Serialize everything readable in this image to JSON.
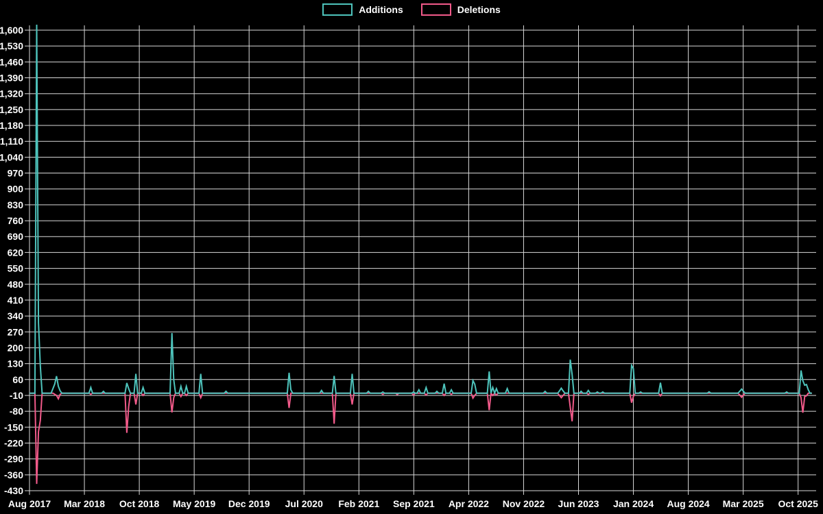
{
  "chart_data": {
    "type": "line",
    "title": "",
    "background": "#000000",
    "grid": true,
    "legend_position": "top-center",
    "x_axis": {
      "unit": "week",
      "tick_labels": [
        "Aug 2017",
        "Mar 2018",
        "Oct 2018",
        "May 2019",
        "Dec 2019",
        "Jul 2020",
        "Feb 2021",
        "Sep 2021",
        "Apr 2022",
        "Nov 2022",
        "Jun 2023",
        "Jan 2024",
        "Aug 2024",
        "Mar 2025",
        "Oct 2025"
      ]
    },
    "y_axis": {
      "min": -430,
      "max": 1600,
      "step": 70,
      "tick_labels": [
        "1,600",
        "1,530",
        "1,460",
        "1,390",
        "1,320",
        "1,250",
        "1,180",
        "1,110",
        "1,040",
        "970",
        "900",
        "830",
        "760",
        "690",
        "620",
        "550",
        "480",
        "410",
        "340",
        "270",
        "200",
        "130",
        "60",
        "-10",
        "-80",
        "-150",
        "-220",
        "-290",
        "-360",
        "-430"
      ]
    },
    "series": [
      {
        "name": "Additions",
        "color": "#4ec4bc"
      },
      {
        "name": "Deletions",
        "color": "#f25a8a"
      }
    ],
    "weeks_total": 435,
    "baseline_value": 0,
    "spikes_comment": "sparse weekly points [week_index, additions, deletions]; all other weeks are 0",
    "spikes": [
      [
        4,
        1630,
        -400
      ],
      [
        5,
        310,
        -170
      ],
      [
        6,
        120,
        -120
      ],
      [
        13,
        20,
        0
      ],
      [
        14,
        40,
        -5
      ],
      [
        15,
        75,
        -10
      ],
      [
        16,
        30,
        -25
      ],
      [
        17,
        10,
        -5
      ],
      [
        34,
        25,
        -5
      ],
      [
        41,
        8,
        0
      ],
      [
        54,
        45,
        -175
      ],
      [
        55,
        20,
        -60
      ],
      [
        59,
        85,
        -50
      ],
      [
        63,
        25,
        -10
      ],
      [
        79,
        265,
        -85
      ],
      [
        80,
        60,
        -20
      ],
      [
        84,
        30,
        -15
      ],
      [
        87,
        30,
        -10
      ],
      [
        95,
        85,
        -20
      ],
      [
        109,
        8,
        0
      ],
      [
        144,
        90,
        -65
      ],
      [
        145,
        15,
        0
      ],
      [
        162,
        12,
        0
      ],
      [
        169,
        76,
        -135
      ],
      [
        179,
        85,
        -50
      ],
      [
        188,
        8,
        0
      ],
      [
        196,
        5,
        -5
      ],
      [
        204,
        0,
        -6
      ],
      [
        213,
        5,
        -8
      ],
      [
        216,
        15,
        0
      ],
      [
        220,
        25,
        -8
      ],
      [
        226,
        8,
        0
      ],
      [
        230,
        42,
        -10
      ],
      [
        234,
        15,
        -5
      ],
      [
        246,
        55,
        -22
      ],
      [
        247,
        40,
        -10
      ],
      [
        255,
        96,
        -75
      ],
      [
        257,
        25,
        -10
      ],
      [
        259,
        20,
        -8
      ],
      [
        265,
        20,
        0
      ],
      [
        286,
        8,
        0
      ],
      [
        294,
        10,
        -10
      ],
      [
        295,
        22,
        -20
      ],
      [
        296,
        10,
        -10
      ],
      [
        300,
        148,
        -63
      ],
      [
        301,
        82,
        -124
      ],
      [
        306,
        8,
        0
      ],
      [
        310,
        12,
        -5
      ],
      [
        315,
        5,
        0
      ],
      [
        318,
        5,
        0
      ],
      [
        334,
        122,
        -42
      ],
      [
        335,
        108,
        -15
      ],
      [
        339,
        5,
        0
      ],
      [
        350,
        46,
        -12
      ],
      [
        377,
        6,
        0
      ],
      [
        394,
        8,
        -8
      ],
      [
        395,
        18,
        -18
      ],
      [
        396,
        8,
        -8
      ],
      [
        420,
        5,
        0
      ],
      [
        428,
        100,
        -20
      ],
      [
        429,
        55,
        -86
      ],
      [
        430,
        35,
        -15
      ],
      [
        431,
        38,
        -12
      ],
      [
        432,
        15,
        0
      ]
    ],
    "grid_color": "#d9d9d9",
    "text_color": "#ffffff"
  }
}
